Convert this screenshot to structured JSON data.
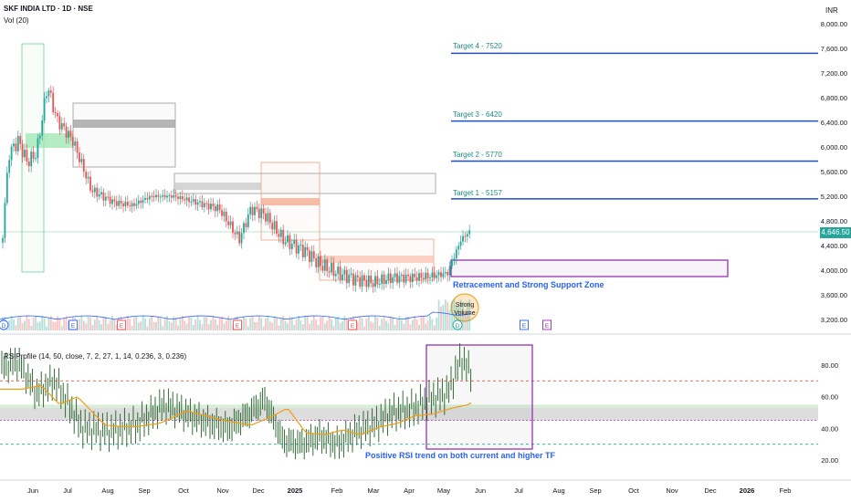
{
  "header": {
    "symbol_line": "SKF INDIA LTD · 1D · NSE",
    "vol_label": "Vol (20)",
    "currency": "INR",
    "rsi_line": "RSIProfile (14, 50, close, 7, 2, 27, 1, 14, 0.236, 3, 0.236)"
  },
  "colors": {
    "bull": "#26a69a",
    "bear": "#ef5350",
    "target_line": "#1e4fc8",
    "target_text": "#1d8a84",
    "zone": "#8e24aa",
    "annotation": "#2962ff",
    "rsi_line": "#2e7d32",
    "rsi_ma": "#f39c12",
    "highlight": "#f7a72a"
  },
  "chart_data": {
    "type": "candlestick",
    "price_axis": {
      "ticks": [
        "8,000.00",
        "7,600.00",
        "7,200.00",
        "6,800.00",
        "6,400.00",
        "6,000.00",
        "5,600.00",
        "5,200.00",
        "4,800.00",
        "4,400.00",
        "4,000.00",
        "3,600.00",
        "3,200.00"
      ],
      "last_price": "4,646.50"
    },
    "rsi_axis": {
      "ticks": [
        "80.00",
        "60.00",
        "40.00",
        "20.00"
      ],
      "levels": [
        70,
        30
      ]
    },
    "time_axis": [
      "Jun",
      "Jul",
      "Aug",
      "Sep",
      "Oct",
      "Nov",
      "Dec",
      "2025",
      "Feb",
      "Mar",
      "Apr",
      "May",
      "Jun",
      "Jul",
      "Aug",
      "Sep",
      "Oct",
      "Nov",
      "Dec",
      "2026",
      "Feb"
    ],
    "targets": [
      {
        "label": "Target 4 - 7520",
        "value": 7520
      },
      {
        "label": "Target 3 - 6420",
        "value": 6420
      },
      {
        "label": "Target 2 - 5770",
        "value": 5770
      },
      {
        "label": "Target 1 - 5157",
        "value": 5157
      }
    ],
    "annotations": {
      "support_zone": "Retracement and Strong Support Zone",
      "volume_note_1": "Strong",
      "volume_note_2": "Volume",
      "rsi_note": "Positive RSI trend on both current and higher TF"
    },
    "event_markers": [
      "D",
      "E",
      "E",
      "E",
      "E",
      "D",
      "E",
      "E"
    ]
  }
}
